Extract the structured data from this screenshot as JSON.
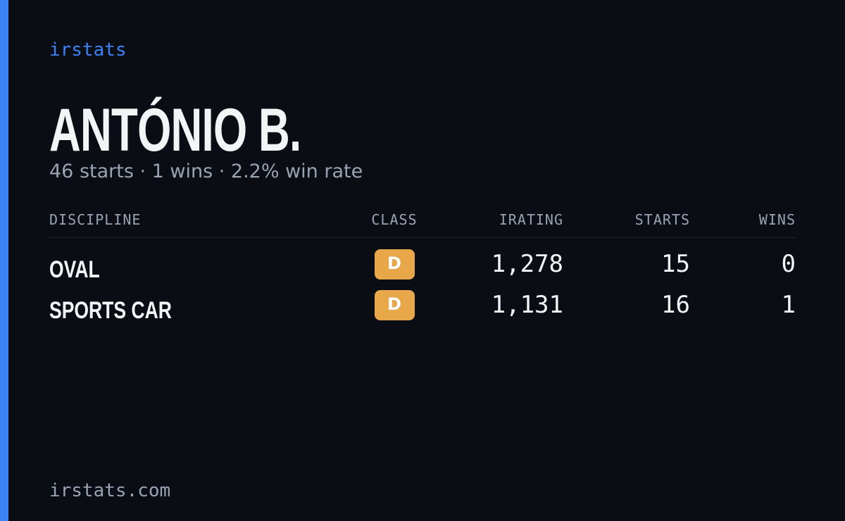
{
  "header": {
    "brand": "irstats",
    "name": "ANTÓNIO B.",
    "subtitle": "46 starts · 1 wins · 2.2% win rate"
  },
  "table": {
    "columns": [
      "DISCIPLINE",
      "CLASS",
      "IRATING",
      "STARTS",
      "WINS"
    ],
    "rows": [
      [
        "OVAL",
        "D",
        "1,278",
        "15",
        "0"
      ],
      [
        "SPORTS CAR",
        "D",
        "1,131",
        "16",
        "1"
      ]
    ]
  },
  "footer": {
    "url": "irstats.com"
  }
}
